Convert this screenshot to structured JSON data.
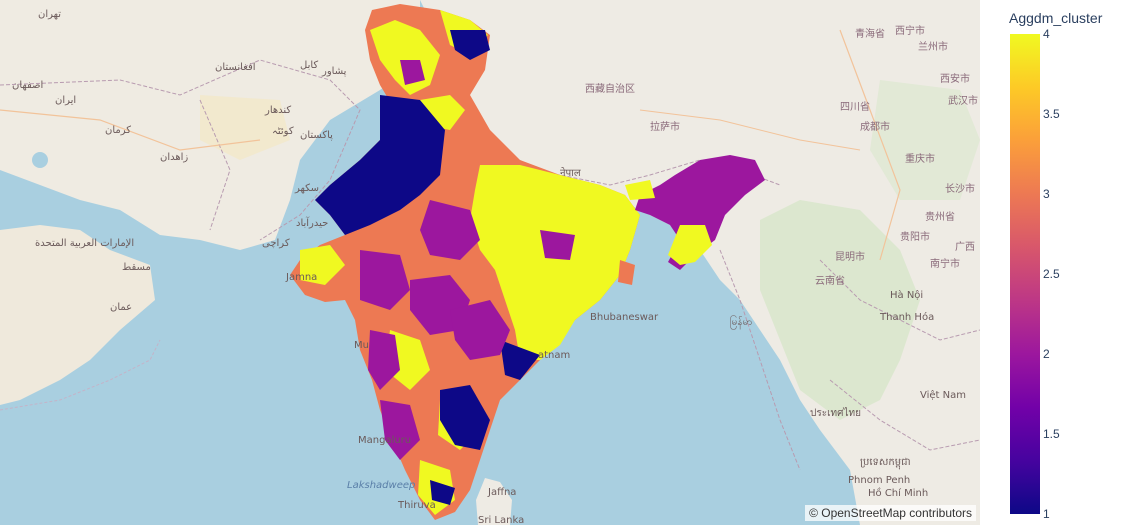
{
  "colorbar": {
    "title": "Aggdm_cluster",
    "ticks": [
      {
        "label": "4",
        "value": 4
      },
      {
        "label": "3.5",
        "value": 3.5
      },
      {
        "label": "3",
        "value": 3
      },
      {
        "label": "2.5",
        "value": 2.5
      },
      {
        "label": "2",
        "value": 2
      },
      {
        "label": "1.5",
        "value": 1.5
      },
      {
        "label": "1",
        "value": 1
      }
    ],
    "min": 1,
    "max": 4,
    "colorscale": [
      "#0d0887",
      "#46039f",
      "#7201a8",
      "#9c179e",
      "#bd3786",
      "#d8576b",
      "#ed7953",
      "#fb9f3a",
      "#fdca26",
      "#f0f921"
    ]
  },
  "attribution": "© OpenStreetMap contributors",
  "map_labels": {
    "tehran": "تهران",
    "isfahan": "اصفهان",
    "iran": "ایران",
    "kerman": "کرمان",
    "zahedan": "زاهدان",
    "afghanistan": "افغانستان",
    "kabul": "کابل",
    "kandahar": "کندهار",
    "peshawar": "پشاور",
    "pakistan": "پاکستان",
    "quetta": "کوئٹہ",
    "karachi": "کراچی",
    "hyderabad": "حیدرآباد",
    "sukkur": "سکھر",
    "uae": "الإمارات العربية المتحدة",
    "muscat": "مسقط",
    "oman": "عمان",
    "jamnagar": "Jamna",
    "mumbai": "Mu",
    "mangaluru": "Mangaluru",
    "lakshadweep": "Lakshadweep",
    "thiruvananthapuram": "Thiruva",
    "jaffna": "Jaffna",
    "srilanka": "Sri Lanka",
    "bhubaneswar": "Bhubaneswar",
    "visakhapatnam": "atnam",
    "nepal": "नेपाल",
    "tibet": "西藏自治区",
    "lhasa": "拉萨市",
    "sichuan": "四川省",
    "chengdu": "成都市",
    "chongqing": "重庆市",
    "kunming": "昆明市",
    "yunnan": "云南省",
    "guizhou": "贵州省",
    "guiyang": "贵阳市",
    "myanmar": "မြန်မာ",
    "hanoi": "Hà Nội",
    "vietnam": "Việt Nam",
    "thailand": "ประเทศไทย",
    "cambodia": "ប្រទេសកម្ពុជា",
    "hcm": "Hồ Chí Minh",
    "phnompenh": "Phnom Penh",
    "thanhhoa": "Thanh Hóa",
    "qinghai": "青海省",
    "xining": "西宁市",
    "lanzhou": "兰州市",
    "xian": "西安市",
    "wuhan": "武汉市",
    "changsha": "长沙市",
    "nanning": "南宁市",
    "guangxi": "广西"
  }
}
